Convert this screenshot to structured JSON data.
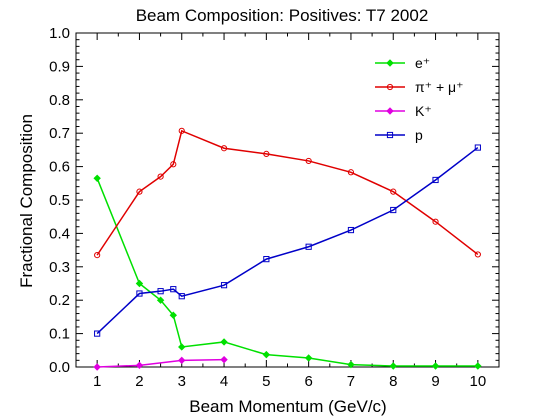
{
  "chart_data": {
    "type": "line",
    "title": "Beam Composition: Positives: T7 2002",
    "xlabel": "Beam Momentum (GeV/c)",
    "ylabel": "Fractional Composition",
    "xlim": [
      0.5,
      10.5
    ],
    "ylim": [
      0.0,
      1.0
    ],
    "x_ticks": [
      "1",
      "2",
      "3",
      "4",
      "5",
      "6",
      "7",
      "8",
      "9",
      "10"
    ],
    "y_ticks": [
      "0.0",
      "0.1",
      "0.2",
      "0.3",
      "0.4",
      "0.5",
      "0.6",
      "0.7",
      "0.8",
      "0.9",
      "1.0"
    ],
    "grid": false,
    "legend_position": "top-right",
    "series": [
      {
        "name": "e⁺",
        "color": "#00e000",
        "marker": "diamond",
        "x": [
          1,
          2,
          2.5,
          2.8,
          3,
          4,
          5,
          6,
          7,
          8,
          9,
          10
        ],
        "y": [
          0.565,
          0.25,
          0.2,
          0.155,
          0.06,
          0.075,
          0.037,
          0.027,
          0.007,
          0.003,
          0.003,
          0.003
        ]
      },
      {
        "name": "π⁺ + μ⁺",
        "color": "#e00000",
        "marker": "circle",
        "x": [
          1,
          2,
          2.5,
          2.8,
          3,
          4,
          5,
          6,
          7,
          8,
          9,
          10
        ],
        "y": [
          0.335,
          0.525,
          0.57,
          0.607,
          0.707,
          0.655,
          0.638,
          0.617,
          0.583,
          0.525,
          0.435,
          0.337
        ]
      },
      {
        "name": "K⁺",
        "color": "#e000e0",
        "marker": "diamond",
        "x": [
          1,
          2,
          3,
          4
        ],
        "y": [
          0.0,
          0.005,
          0.02,
          0.022
        ]
      },
      {
        "name": "p",
        "color": "#0000c8",
        "marker": "square",
        "x": [
          1,
          2,
          2.5,
          2.8,
          3,
          4,
          5,
          6,
          7,
          8,
          9,
          10
        ],
        "y": [
          0.1,
          0.22,
          0.227,
          0.233,
          0.212,
          0.245,
          0.323,
          0.36,
          0.41,
          0.47,
          0.56,
          0.657
        ]
      }
    ]
  }
}
